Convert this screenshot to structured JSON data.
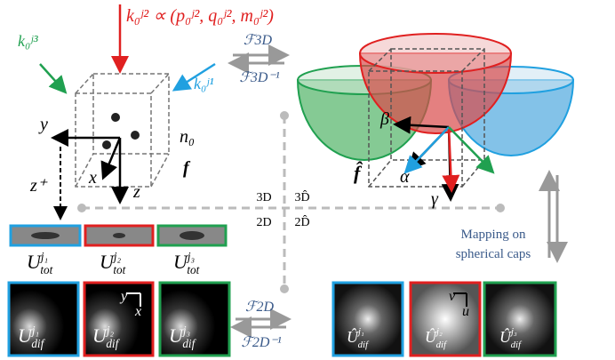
{
  "labels": {
    "k_red": "k₀ʲ² ∝ (p₀ʲ², q₀ʲ², m₀ʲ²)",
    "k_green": "k₀ʲ³",
    "k_blue": "k₀ʲ¹",
    "f3d": "ℱ3D",
    "f3d_inv": "ℱ3D⁻¹",
    "f2d": "ℱ2D",
    "f2d_inv": "ℱ2D⁻¹",
    "n0": "n₀",
    "f": "f",
    "f_hat": "f̂",
    "y": "y",
    "x": "x",
    "z": "z",
    "z_plus": "z⁺",
    "beta": "β",
    "alpha": "α",
    "gamma": "γ",
    "d3": "3D",
    "d3_hat": "3D̂",
    "d2": "2D",
    "d2_hat": "2D̂",
    "map1": "Mapping on",
    "map2": "spherical caps",
    "py": "y",
    "px": "x",
    "pv": "v",
    "pu": "u"
  },
  "u_tot": [
    {
      "base": "U",
      "sub": "tot",
      "sup": "j₁"
    },
    {
      "base": "U",
      "sub": "tot",
      "sup": "j₂"
    },
    {
      "base": "U",
      "sub": "tot",
      "sup": "j₃"
    }
  ],
  "u_dif": [
    {
      "base": "U",
      "sub": "dif",
      "sup": "j₁"
    },
    {
      "base": "U",
      "sub": "dif",
      "sup": "j₂"
    },
    {
      "base": "U",
      "sub": "dif",
      "sup": "j₃"
    }
  ],
  "u_dif_hat": [
    {
      "base": "Û",
      "sub": "dif",
      "sup": "j₁"
    },
    {
      "base": "Û",
      "sub": "dif",
      "sup": "j₂"
    },
    {
      "base": "Û",
      "sub": "dif",
      "sup": "j₃"
    }
  ]
}
